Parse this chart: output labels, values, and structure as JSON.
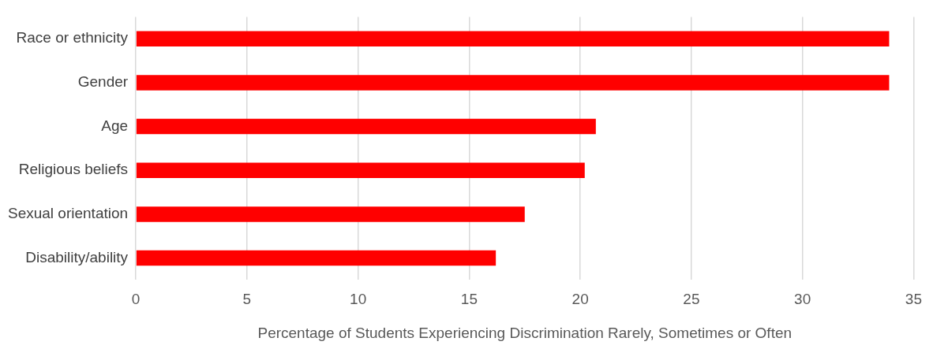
{
  "chart_data": {
    "type": "bar",
    "orientation": "horizontal",
    "xlabel": "Percentage of Students Experiencing Discrimination Rarely, Sometimes or Often",
    "categories": [
      "Race or ethnicity",
      "Gender",
      "Age",
      "Religious beliefs",
      "Sexual orientation",
      "Disability/ability"
    ],
    "values": [
      33.9,
      33.9,
      20.7,
      20.2,
      17.5,
      16.2
    ],
    "color": "#ff0000",
    "xlim": [
      0,
      35
    ],
    "xticks": [
      0,
      5,
      10,
      15,
      20,
      25,
      30,
      35
    ],
    "grid": "x",
    "legend": false
  }
}
